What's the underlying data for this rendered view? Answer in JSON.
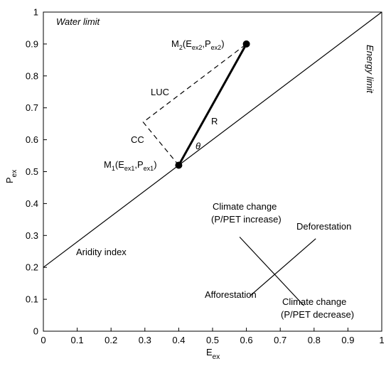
{
  "chart_data": {
    "type": "line",
    "xlim": [
      0,
      1
    ],
    "ylim": [
      0,
      1
    ],
    "xticks": [
      0,
      0.1,
      0.2,
      0.3,
      0.4,
      0.5,
      0.6,
      0.7,
      0.8,
      0.9,
      1
    ],
    "yticks": [
      0,
      0.1,
      0.2,
      0.3,
      0.4,
      0.5,
      0.6,
      0.7,
      0.8,
      0.9,
      1
    ],
    "xtick_labels": [
      "0",
      "0.1",
      "0.2",
      "0.3",
      "0.4",
      "0.5",
      "0.6",
      "0.7",
      "0.8",
      "0.9",
      "1"
    ],
    "ytick_labels": [
      "0",
      "0.1",
      "0.2",
      "0.3",
      "0.4",
      "0.5",
      "0.6",
      "0.7",
      "0.8",
      "0.9",
      "1"
    ],
    "xlabel": {
      "main": "E",
      "sub": "ex"
    },
    "ylabel": {
      "main": "P",
      "sub": "ex"
    },
    "grid": false,
    "series": [
      {
        "style": "solid",
        "x": [
          0,
          1
        ],
        "y": [
          0.2,
          1
        ]
      },
      {
        "style": "dashdot",
        "x": [
          0,
          1
        ],
        "y": [
          1,
          1
        ]
      },
      {
        "style": "dashdot",
        "x": [
          1,
          1
        ],
        "y": [
          0,
          1
        ]
      },
      {
        "style": "thick",
        "x": [
          0.4,
          0.6
        ],
        "y": [
          0.52,
          0.9
        ]
      },
      {
        "style": "dashed",
        "x": [
          0.4,
          0.295,
          0.6
        ],
        "y": [
          0.52,
          0.655,
          0.9
        ]
      },
      {
        "style": "solid",
        "x": [
          0.58,
          0.77
        ],
        "y": [
          0.295,
          0.08
        ]
      },
      {
        "style": "solid",
        "x": [
          0.61,
          0.805
        ],
        "y": [
          0.11,
          0.29
        ]
      }
    ],
    "points": [
      {
        "x": 0.4,
        "y": 0.52
      },
      {
        "x": 0.6,
        "y": 0.9
      }
    ],
    "annotations": {
      "water_limit": "Water limit",
      "energy_limit": "Energy limit",
      "aridity_index": "Aridity index",
      "luc": "LUC",
      "cc": "CC",
      "r": "R",
      "theta": "θ",
      "m2": {
        "name": "M",
        "name_sub": "2",
        "open": "(E",
        "sub_a": "ex2",
        "mid": ",P",
        "sub_b": "ex2",
        "close": ")"
      },
      "m1": {
        "name": "M",
        "name_sub": "1",
        "open": "(E",
        "sub_a": "ex1",
        "mid": ",P",
        "sub_b": "ex1",
        "close": ")"
      },
      "cc_increase_1": "Climate change",
      "cc_increase_2": "(P/PET increase)",
      "deforestation": "Deforestation",
      "afforestation": "Afforestation",
      "cc_decrease_1": "Climate change",
      "cc_decrease_2": "(P/PET decrease)"
    }
  }
}
